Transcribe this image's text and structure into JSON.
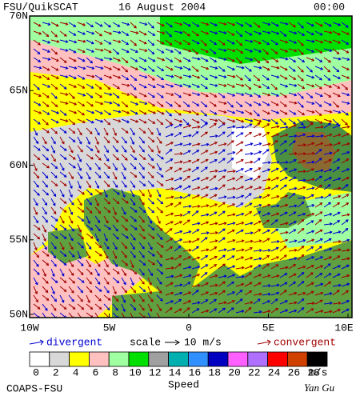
{
  "header": {
    "title": "FSU/QuikSCAT",
    "date": "16 August 2004",
    "time": "00:00"
  },
  "map": {
    "lat_labels": [
      "70N",
      "65N",
      "60N",
      "55N",
      "50N"
    ],
    "lon_labels": [
      "10W",
      "5W",
      "0",
      "5E",
      "10E"
    ]
  },
  "legend": {
    "divergent": "divergent",
    "scale": "scale",
    "scale_value": "10 m/s",
    "convergent": "convergent"
  },
  "colorbar": {
    "labels": [
      "0",
      "2",
      "4",
      "6",
      "8",
      "10",
      "12",
      "14",
      "16",
      "18",
      "20",
      "22",
      "24",
      "26",
      "28"
    ],
    "unit": "m/s",
    "title": "Speed",
    "colors": [
      "#ffffff",
      "#d8d8d8",
      "#ffff00",
      "#ffc0c0",
      "#a0ffa0",
      "#00e000",
      "#a0a0a0",
      "#00b0b0",
      "#3090ff",
      "#0000c0",
      "#ff60ff",
      "#b070ff",
      "#ff0000",
      "#d04000",
      "#000000"
    ]
  },
  "footer": {
    "org": "COAPS-FSU",
    "author": "Yan Gu"
  }
}
